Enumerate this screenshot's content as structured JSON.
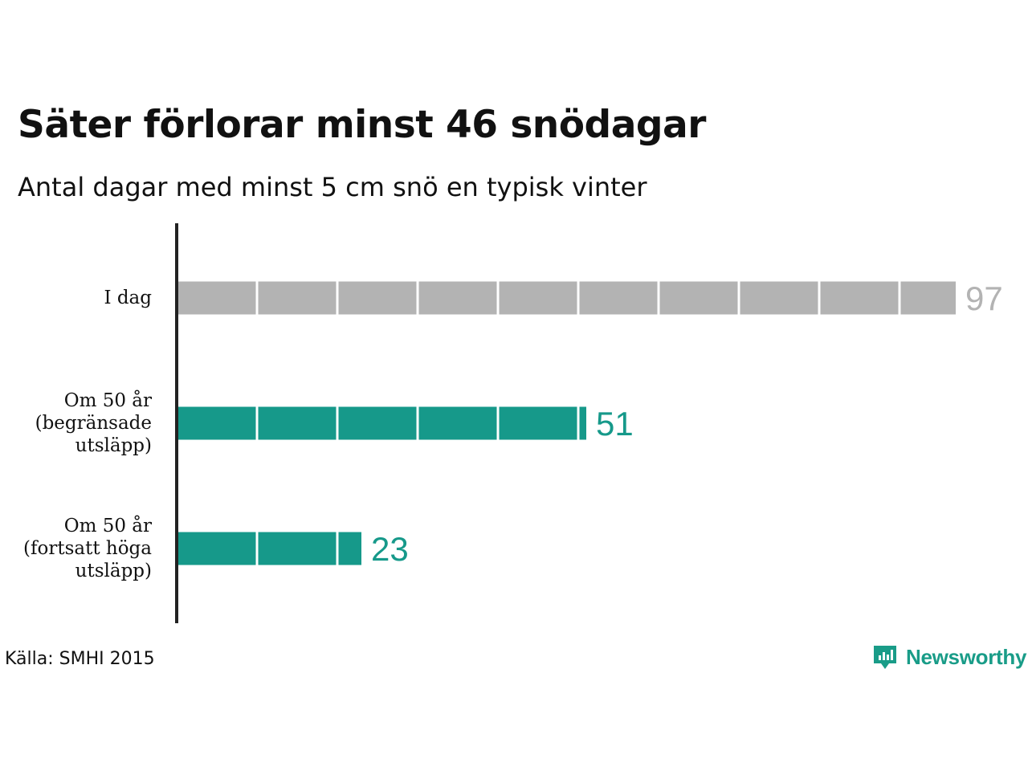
{
  "title": "Säter förlorar minst 46 snödagar",
  "subtitle": "Antal dagar med minst 5 cm snö en typisk vinter",
  "source": "Källa: SMHI 2015",
  "brand": {
    "name": "Newsworthy",
    "icon": "newsworthy-logo-icon",
    "color": "#199c88"
  },
  "chart_data": {
    "type": "bar",
    "orientation": "horizontal",
    "title": "Säter förlorar minst 46 snödagar",
    "subtitle": "Antal dagar med minst 5 cm snö en typisk vinter",
    "categories": [
      [
        "I dag"
      ],
      [
        "Om 50 år",
        "(begränsade",
        "utsläpp)"
      ],
      [
        "Om 50 år",
        "(fortsatt höga",
        "utsläpp)"
      ]
    ],
    "values": [
      97,
      51,
      23
    ],
    "value_labels": [
      "97",
      "51",
      "23"
    ],
    "colors": [
      "#b3b3b3",
      "#16998a",
      "#16998a"
    ],
    "label_colors": [
      "#b3b3b3",
      "#16998a",
      "#16998a"
    ],
    "segment_size": 10,
    "xlim": [
      0,
      97
    ],
    "grid": false,
    "legend": "none"
  }
}
